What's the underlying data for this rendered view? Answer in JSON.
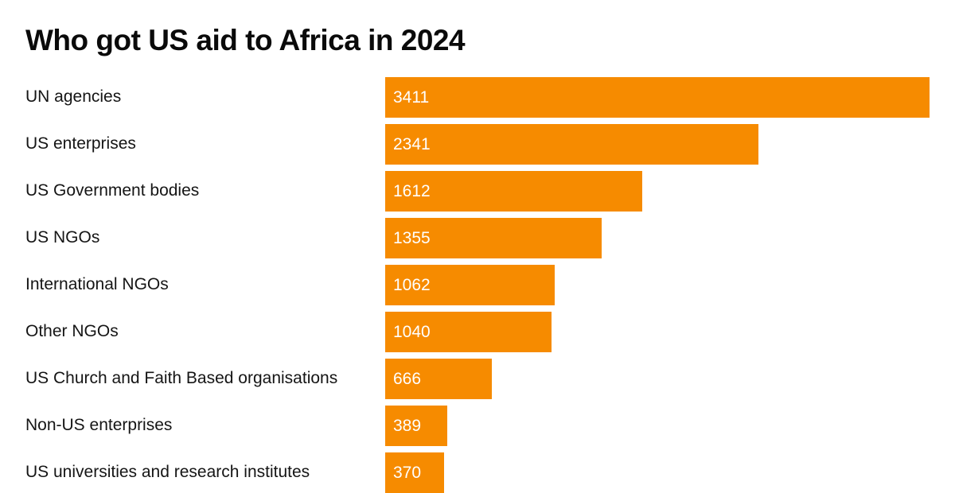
{
  "chart_data": {
    "type": "bar",
    "orientation": "horizontal",
    "title": "Who got US aid to Africa in 2024",
    "xlabel": "",
    "ylabel": "",
    "categories": [
      "UN agencies",
      "US enterprises",
      "US Government bodies",
      "US NGOs",
      "International NGOs",
      "Other NGOs",
      "US Church and Faith Based organisations",
      "Non-US enterprises",
      "US universities and research institutes"
    ],
    "values": [
      3411,
      2341,
      1612,
      1355,
      1062,
      1040,
      666,
      389,
      370
    ],
    "xlim": [
      0,
      3411
    ],
    "grid": false,
    "legend": "none",
    "bar_color": "#f68b00",
    "value_label_color": "#ffffff"
  }
}
